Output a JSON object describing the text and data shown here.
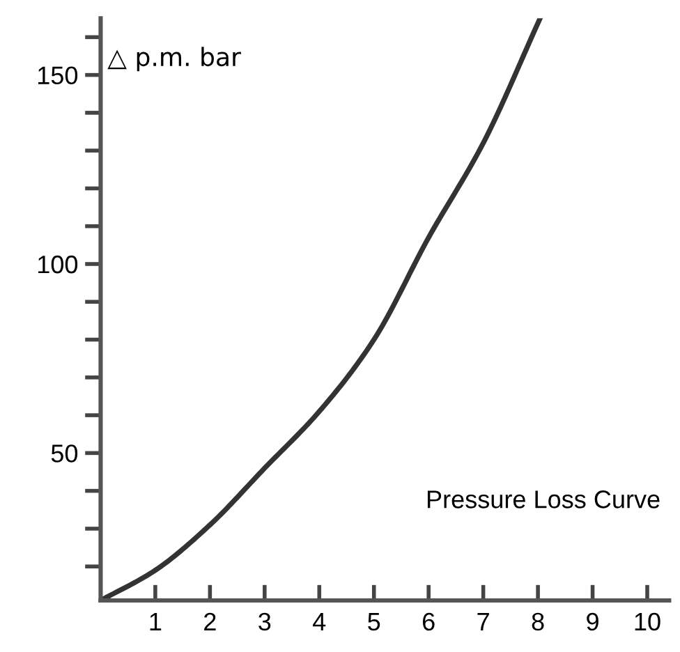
{
  "chart_data": {
    "type": "line",
    "ylabel": "△ p.m. bar",
    "annotations": [
      "Pressure Loss Curve"
    ],
    "x": [
      0,
      1,
      2,
      3,
      4,
      5,
      6,
      7,
      8.04
    ],
    "series": [
      {
        "color": "#333333",
        "values": [
          11,
          19,
          31,
          46,
          61,
          80,
          107,
          132,
          165
        ]
      }
    ],
    "xlim": [
      0,
      10.4
    ],
    "ylim": [
      11,
      165
    ],
    "xticks": [
      1,
      2,
      3,
      4,
      5,
      6,
      7,
      8,
      9,
      10
    ],
    "yticks": [
      {
        "value": 20,
        "label": null
      },
      {
        "value": 30,
        "label": null
      },
      {
        "value": 40,
        "label": null
      },
      50,
      {
        "value": 60,
        "label": null
      },
      {
        "value": 70,
        "label": null
      },
      {
        "value": 80,
        "label": null
      },
      {
        "value": 90,
        "label": null
      },
      100,
      {
        "value": 110,
        "label": null
      },
      {
        "value": 120,
        "label": null
      },
      {
        "value": 130,
        "label": null
      },
      {
        "value": 140,
        "label": null
      },
      150,
      {
        "value": 160,
        "label": null
      }
    ],
    "grid": false,
    "legend": false,
    "marker": "none",
    "line_style": "solid"
  }
}
